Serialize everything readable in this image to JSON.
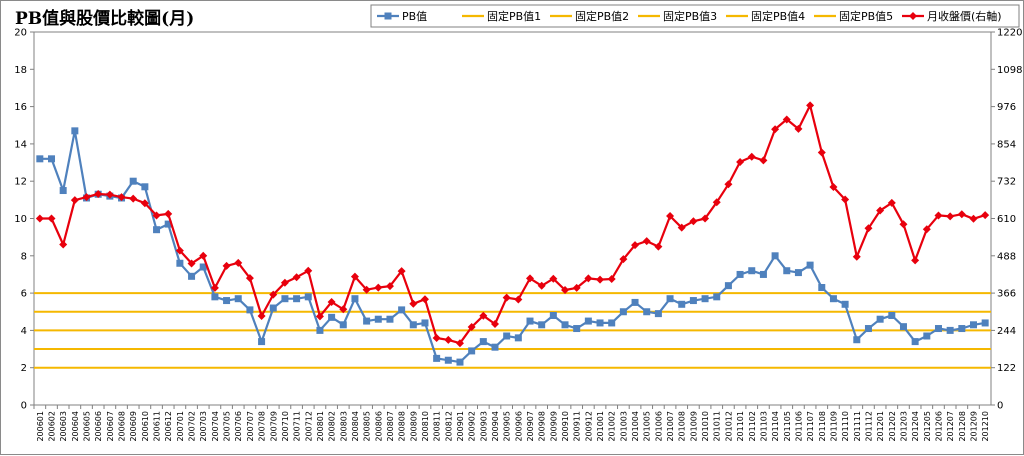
{
  "chart_data": {
    "type": "line",
    "title": "PB值與股價比較圖(月)",
    "xlabel": "",
    "ylabel": "",
    "y_left": {
      "range": [
        0,
        20
      ],
      "ticks": [
        "0",
        "2",
        "4",
        "6",
        "8",
        "10",
        "12",
        "14",
        "16",
        "18",
        "20"
      ]
    },
    "y_right": {
      "range": [
        0,
        1220
      ],
      "ticks": [
        "0",
        "122",
        "244",
        "366",
        "488",
        "610",
        "732",
        "854",
        "976",
        "1098",
        "1220"
      ]
    },
    "grid": false,
    "legend_position": "top",
    "categories": [
      "200601",
      "200602",
      "200603",
      "200604",
      "200605",
      "200606",
      "200607",
      "200608",
      "200609",
      "200610",
      "200611",
      "200612",
      "200701",
      "200702",
      "200703",
      "200704",
      "200705",
      "200706",
      "200707",
      "200708",
      "200709",
      "200710",
      "200711",
      "200712",
      "200801",
      "200802",
      "200803",
      "200804",
      "200805",
      "200806",
      "200807",
      "200808",
      "200809",
      "200810",
      "200811",
      "200812",
      "200901",
      "200902",
      "200903",
      "200904",
      "200905",
      "200906",
      "200907",
      "200908",
      "200909",
      "200910",
      "200911",
      "200912",
      "201001",
      "201002",
      "201003",
      "201004",
      "201005",
      "201006",
      "201007",
      "201008",
      "201009",
      "201010",
      "201011",
      "201012",
      "201101",
      "201102",
      "201103",
      "201104",
      "201105",
      "201106",
      "201107",
      "201108",
      "201109",
      "201110",
      "201111",
      "201112",
      "201201",
      "201202",
      "201203",
      "201204",
      "201205",
      "201206",
      "201207",
      "201208",
      "201209",
      "201210"
    ],
    "series": [
      {
        "name": "PB值",
        "axis": "left",
        "color": "#4f81bd",
        "marker": "square",
        "values": [
          13.2,
          13.2,
          11.5,
          14.7,
          11.1,
          11.3,
          11.2,
          11.1,
          12.0,
          11.7,
          9.4,
          9.7,
          7.6,
          6.9,
          7.4,
          5.8,
          5.6,
          5.7,
          5.1,
          3.4,
          5.2,
          5.7,
          5.7,
          5.8,
          4.0,
          4.7,
          4.3,
          5.7,
          4.5,
          4.6,
          4.6,
          5.1,
          4.3,
          4.4,
          2.5,
          2.4,
          2.3,
          2.9,
          3.4,
          3.1,
          3.7,
          3.6,
          4.5,
          4.3,
          4.8,
          4.3,
          4.1,
          4.5,
          4.4,
          4.4,
          5.0,
          5.5,
          5.0,
          4.9,
          5.7,
          5.4,
          5.6,
          5.7,
          5.8,
          6.4,
          7.0,
          7.2,
          7.0,
          8.0,
          7.2,
          7.1,
          7.5,
          6.3,
          5.7,
          5.4,
          3.5,
          4.1,
          4.6,
          4.8,
          4.2,
          3.4,
          3.7,
          4.1,
          4.0,
          4.1,
          4.3,
          4.4
        ]
      },
      {
        "name": "固定PB值1",
        "axis": "left",
        "color": "#f5b800",
        "constant": 2
      },
      {
        "name": "固定PB值2",
        "axis": "left",
        "color": "#f5b800",
        "constant": 3
      },
      {
        "name": "固定PB值3",
        "axis": "left",
        "color": "#f5b800",
        "constant": 4
      },
      {
        "name": "固定PB值4",
        "axis": "left",
        "color": "#f5b800",
        "constant": 5
      },
      {
        "name": "固定PB值5",
        "axis": "left",
        "color": "#f5b800",
        "constant": 6
      },
      {
        "name": "月收盤價(右軸)",
        "axis": "right",
        "color": "#e8000d",
        "marker": "diamond",
        "values": [
          610,
          610,
          525,
          670,
          680,
          690,
          688,
          680,
          675,
          660,
          620,
          625,
          505,
          463,
          488,
          383,
          455,
          465,
          415,
          291,
          361,
          400,
          418,
          439,
          290,
          337,
          313,
          420,
          377,
          384,
          389,
          438,
          331,
          346,
          219,
          213,
          202,
          255,
          292,
          265,
          351,
          345,
          414,
          390,
          413,
          376,
          383,
          414,
          410,
          412,
          477,
          523,
          536,
          518,
          618,
          580,
          601,
          610,
          663,
          722,
          795,
          812,
          800,
          902,
          934,
          903,
          980,
          826,
          713,
          672,
          485,
          578,
          636,
          661,
          591,
          473,
          575,
          620,
          617,
          624,
          609,
          621
        ]
      }
    ]
  }
}
